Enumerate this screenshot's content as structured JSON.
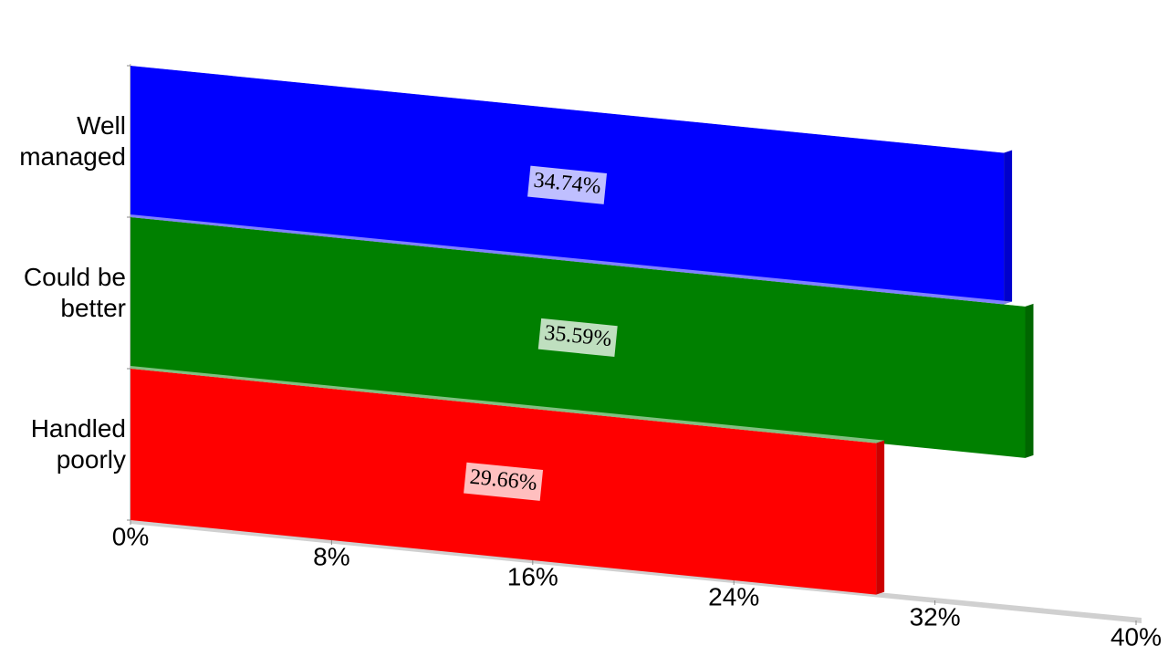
{
  "chart_data": {
    "type": "bar3d",
    "categories": [
      "Well managed",
      "Could be better",
      "Handled poorly"
    ],
    "values": [
      34.74,
      35.59,
      29.66
    ],
    "value_labels": [
      "34.74%",
      "35.59%",
      "29.66%"
    ],
    "colors": [
      "#0000ff",
      "#008000",
      "#ff0000"
    ],
    "xlim": [
      0,
      40
    ],
    "xticks": [
      {
        "value": 0,
        "label": "0%"
      },
      {
        "value": 8,
        "label": "8%"
      },
      {
        "value": 16,
        "label": "16%"
      },
      {
        "value": 24,
        "label": "24%"
      },
      {
        "value": 32,
        "label": "32%"
      },
      {
        "value": 40,
        "label": "40%"
      }
    ]
  }
}
